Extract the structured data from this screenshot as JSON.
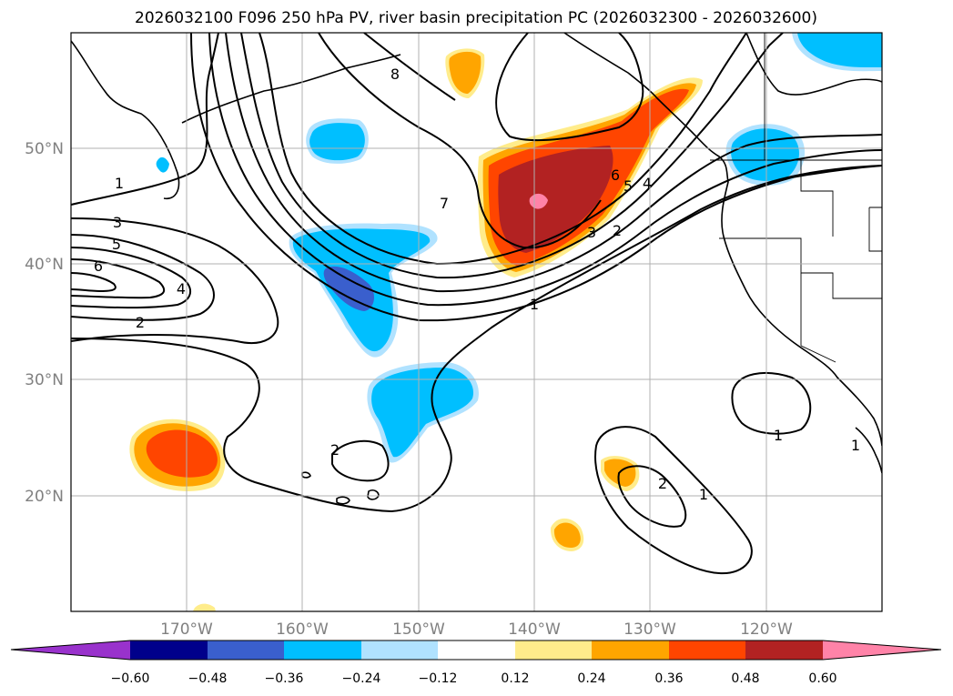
{
  "title": "2026032100 F096 250 hPa PV, river basin precipitation PC (2026032300 - 2026032600)",
  "lat_labels": [
    "50°N",
    "40°N",
    "30°N",
    "20°N"
  ],
  "lon_labels": [
    "170°W",
    "160°W",
    "150°W",
    "140°W",
    "130°W",
    "120°W"
  ],
  "colorbar": {
    "ticks": [
      "−0.60",
      "−0.48",
      "−0.36",
      "−0.24",
      "−0.12",
      "0.12",
      "0.24",
      "0.36",
      "0.48",
      "0.60"
    ],
    "colors": [
      "#9932cc",
      "#00008b",
      "#3a5fcd",
      "#00bfff",
      "#b0e2ff",
      "#ffffff",
      "#ffec8b",
      "#ffa500",
      "#ff4500",
      "#b22222",
      "#ff83a8"
    ]
  },
  "contour_labels": [
    "1",
    "3",
    "5",
    "6",
    "4",
    "2",
    "7",
    "8",
    "1",
    "6",
    "5",
    "4",
    "3",
    "2",
    "1",
    "2",
    "1",
    "2",
    "1"
  ]
}
